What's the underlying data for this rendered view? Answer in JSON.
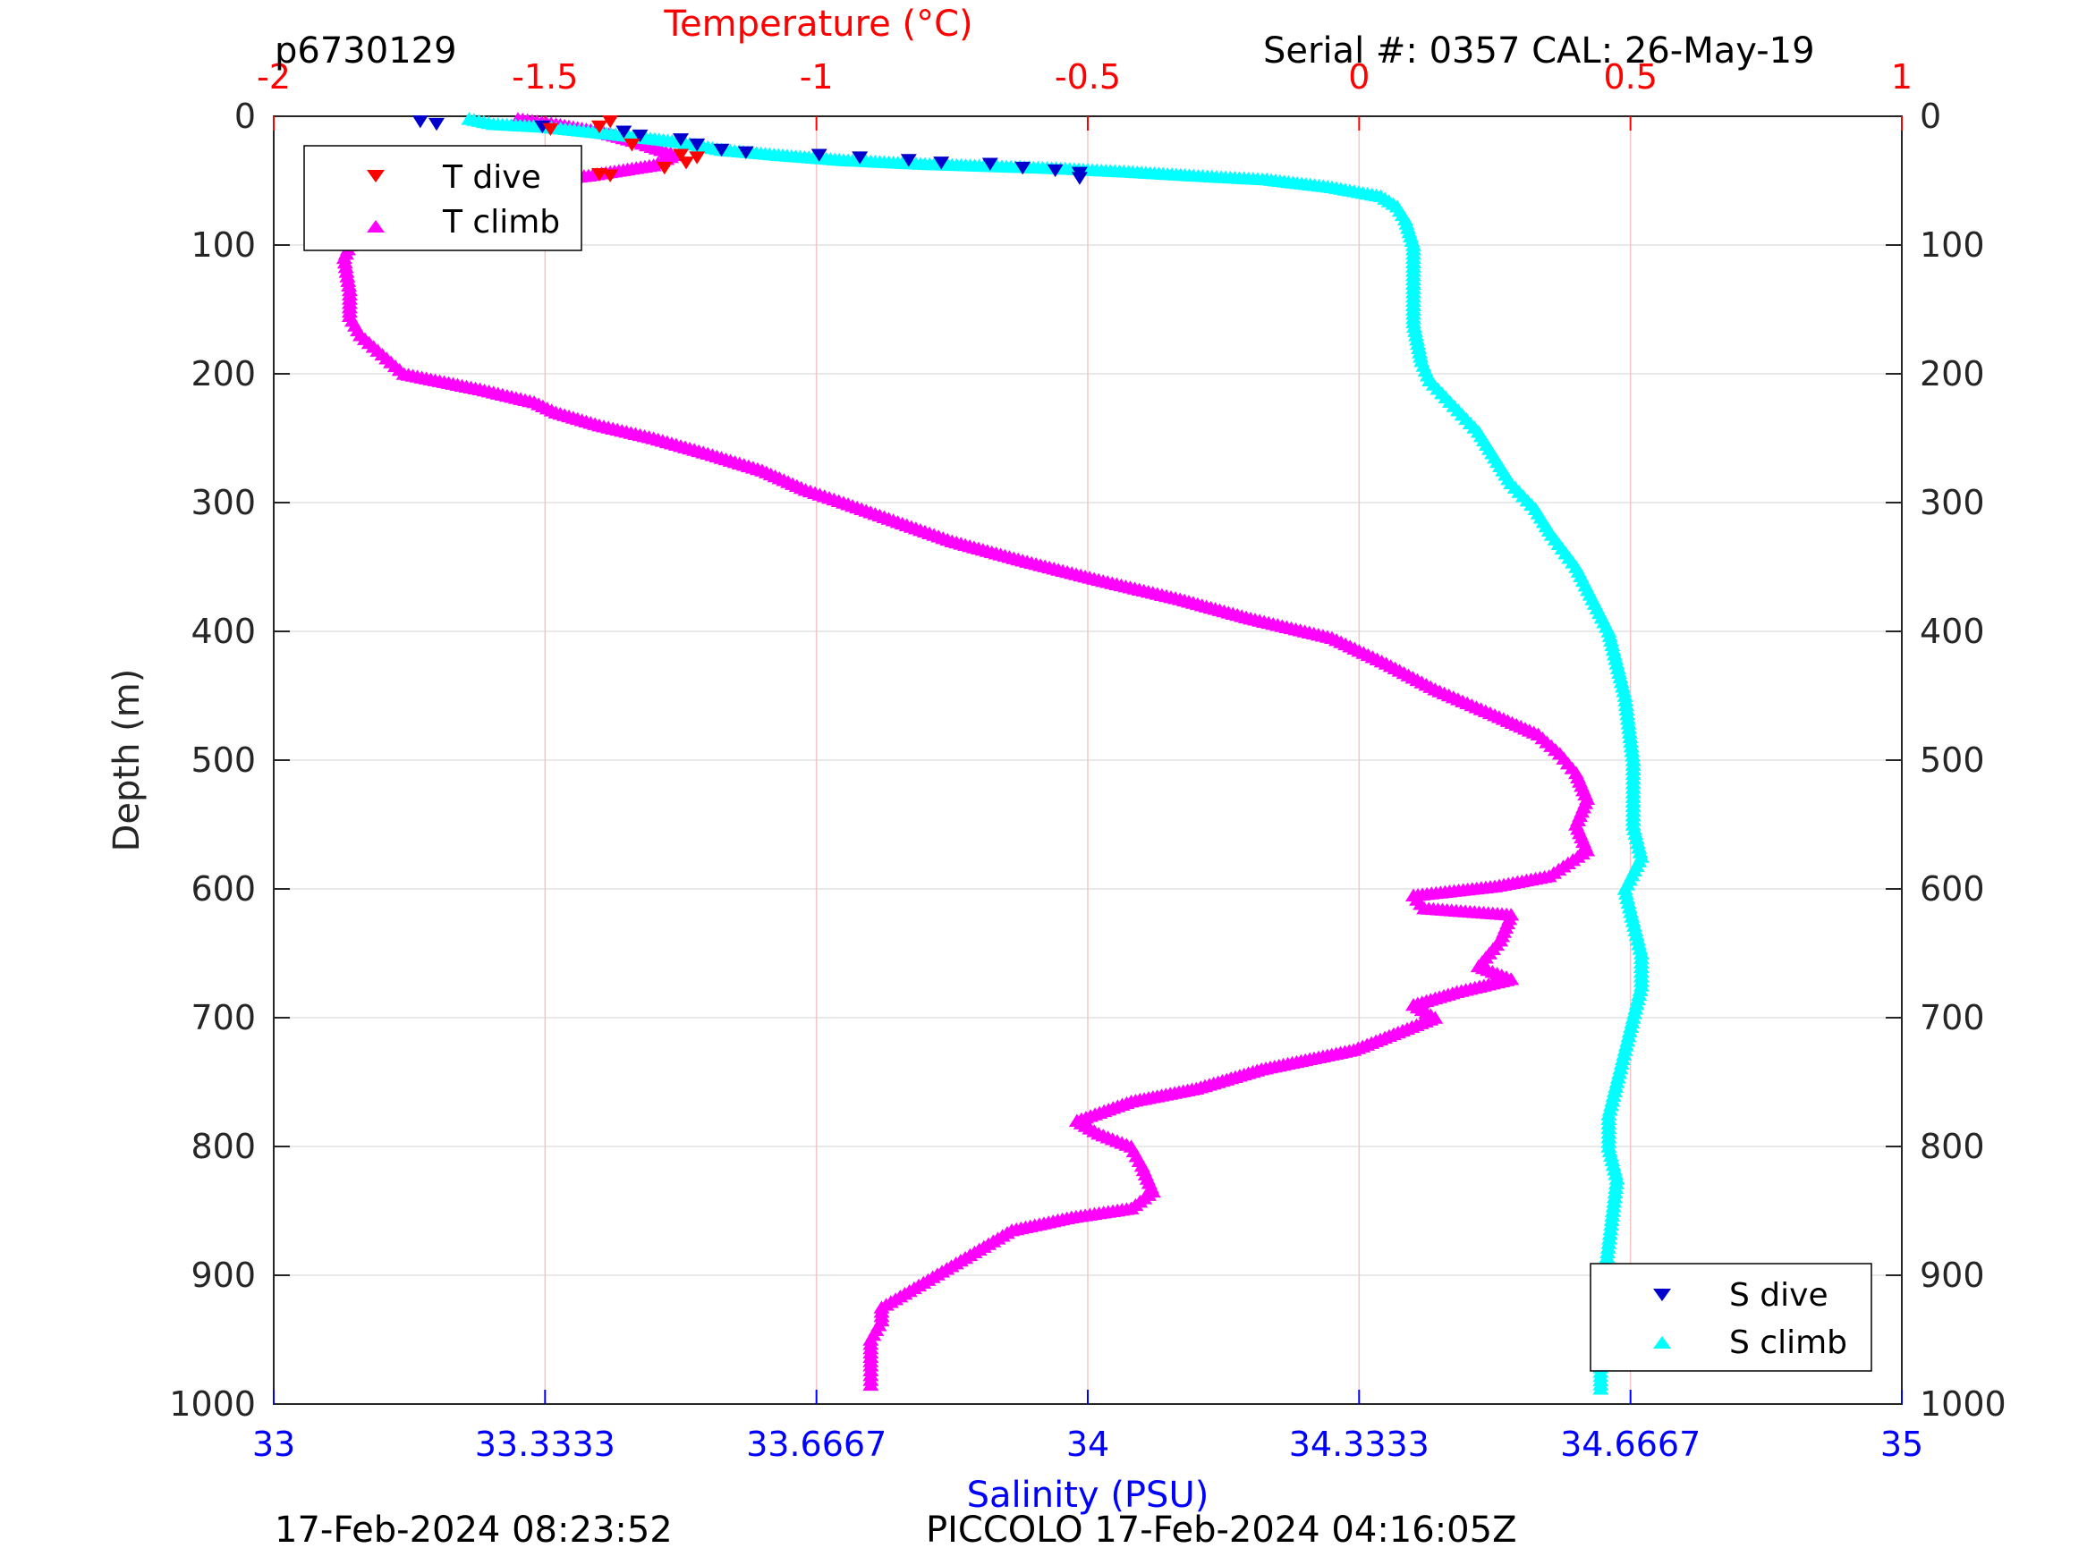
{
  "header": {
    "profile_id": "p6730129",
    "serial": "Serial #: 0357  CAL: 26-May-19"
  },
  "footer": {
    "left_timestamp": "17-Feb-2024 08:23:52",
    "right_label": "PICCOLO 17-Feb-2024 04:16:05Z"
  },
  "colors": {
    "temp_axis": "#ff0000",
    "sal_axis": "#0000ff",
    "t_dive": "#ff0000",
    "t_climb": "#ff00ff",
    "s_dive": "#0000cc",
    "s_climb": "#00ffff"
  },
  "chart_data": {
    "type": "scatter",
    "ylabel": "Depth (m)",
    "top_xlabel": "Temperature (°C)",
    "bottom_xlabel": "Salinity (PSU)",
    "ylim": [
      0,
      1000
    ],
    "y_reversed": true,
    "temp_xlim": [
      -2,
      1
    ],
    "sal_xlim": [
      33,
      35
    ],
    "y_ticks": [
      "0",
      "100",
      "200",
      "300",
      "400",
      "500",
      "600",
      "700",
      "800",
      "900",
      "1000"
    ],
    "temp_ticks": [
      "-2",
      "-1.5",
      "-1",
      "-0.5",
      "0",
      "0.5",
      "1"
    ],
    "sal_ticks": [
      "33",
      "33.3333",
      "33.6667",
      "34",
      "34.3333",
      "34.6667",
      "35"
    ],
    "grid": true,
    "legend_temperature": {
      "placement": "top-left",
      "entries": [
        "T dive",
        "T climb"
      ]
    },
    "legend_salinity": {
      "placement": "bottom-right",
      "entries": [
        "S dive",
        "S climb"
      ]
    },
    "series": [
      {
        "name": "T dive",
        "axis": "temperature",
        "marker": "triangle-down",
        "points": [
          [
            -1.38,
            4
          ],
          [
            -1.4,
            8
          ],
          [
            -1.49,
            10
          ],
          [
            -1.34,
            22
          ],
          [
            -1.25,
            30
          ],
          [
            -1.22,
            32
          ],
          [
            -1.24,
            36
          ],
          [
            -1.28,
            40
          ],
          [
            -1.38,
            46
          ],
          [
            -1.4,
            45
          ]
        ]
      },
      {
        "name": "T climb",
        "axis": "temperature",
        "marker": "triangle-up",
        "points": [
          [
            -1.55,
            2
          ],
          [
            -1.48,
            6
          ],
          [
            -1.4,
            12
          ],
          [
            -1.33,
            20
          ],
          [
            -1.26,
            30
          ],
          [
            -1.3,
            38
          ],
          [
            -1.42,
            46
          ],
          [
            -1.55,
            52
          ],
          [
            -1.72,
            62
          ],
          [
            -1.82,
            75
          ],
          [
            -1.85,
            90
          ],
          [
            -1.87,
            110
          ],
          [
            -1.86,
            135
          ],
          [
            -1.86,
            155
          ],
          [
            -1.84,
            170
          ],
          [
            -1.8,
            185
          ],
          [
            -1.76,
            200
          ],
          [
            -1.62,
            212
          ],
          [
            -1.52,
            222
          ],
          [
            -1.48,
            230
          ],
          [
            -1.4,
            240
          ],
          [
            -1.3,
            250
          ],
          [
            -1.2,
            262
          ],
          [
            -1.1,
            275
          ],
          [
            -1.02,
            290
          ],
          [
            -0.95,
            300
          ],
          [
            -0.85,
            315
          ],
          [
            -0.75,
            330
          ],
          [
            -0.62,
            345
          ],
          [
            -0.48,
            360
          ],
          [
            -0.33,
            375
          ],
          [
            -0.2,
            390
          ],
          [
            -0.05,
            405
          ],
          [
            0.05,
            425
          ],
          [
            0.14,
            445
          ],
          [
            0.25,
            465
          ],
          [
            0.33,
            480
          ],
          [
            0.37,
            495
          ],
          [
            0.4,
            510
          ],
          [
            0.42,
            530
          ],
          [
            0.4,
            550
          ],
          [
            0.42,
            570
          ],
          [
            0.35,
            590
          ],
          [
            0.25,
            598
          ],
          [
            0.1,
            605
          ],
          [
            0.12,
            615
          ],
          [
            0.28,
            620
          ],
          [
            0.26,
            640
          ],
          [
            0.22,
            660
          ],
          [
            0.28,
            670
          ],
          [
            0.18,
            680
          ],
          [
            0.1,
            690
          ],
          [
            0.14,
            700
          ],
          [
            0.08,
            710
          ],
          [
            -0.01,
            725
          ],
          [
            -0.18,
            740
          ],
          [
            -0.3,
            755
          ],
          [
            -0.42,
            765
          ],
          [
            -0.52,
            780
          ],
          [
            -0.48,
            790
          ],
          [
            -0.42,
            800
          ],
          [
            -0.4,
            815
          ],
          [
            -0.38,
            835
          ],
          [
            -0.42,
            848
          ],
          [
            -0.53,
            855
          ],
          [
            -0.64,
            865
          ],
          [
            -0.7,
            880
          ],
          [
            -0.76,
            895
          ],
          [
            -0.82,
            910
          ],
          [
            -0.88,
            925
          ],
          [
            -0.88,
            935
          ],
          [
            -0.9,
            950
          ],
          [
            -0.9,
            970
          ],
          [
            -0.9,
            985
          ]
        ]
      },
      {
        "name": "S dive",
        "axis": "salinity",
        "marker": "triangle-down",
        "points": [
          [
            33.18,
            4
          ],
          [
            33.2,
            6
          ],
          [
            33.33,
            8
          ],
          [
            33.43,
            12
          ],
          [
            33.45,
            15
          ],
          [
            33.5,
            18
          ],
          [
            33.52,
            22
          ],
          [
            33.55,
            26
          ],
          [
            33.58,
            28
          ],
          [
            33.67,
            30
          ],
          [
            33.72,
            32
          ],
          [
            33.78,
            34
          ],
          [
            33.82,
            36
          ],
          [
            33.88,
            37
          ],
          [
            33.92,
            40
          ],
          [
            33.96,
            42
          ],
          [
            33.99,
            44
          ],
          [
            33.99,
            48
          ]
        ]
      },
      {
        "name": "S climb",
        "axis": "salinity",
        "marker": "triangle-up",
        "points": [
          [
            33.24,
            2
          ],
          [
            33.27,
            6
          ],
          [
            33.33,
            8
          ],
          [
            33.42,
            14
          ],
          [
            33.5,
            20
          ],
          [
            33.55,
            26
          ],
          [
            33.62,
            30
          ],
          [
            33.7,
            34
          ],
          [
            33.8,
            37
          ],
          [
            33.95,
            40
          ],
          [
            34.05,
            43
          ],
          [
            34.13,
            46
          ],
          [
            34.22,
            49
          ],
          [
            34.3,
            55
          ],
          [
            34.36,
            62
          ],
          [
            34.38,
            70
          ],
          [
            34.39,
            80
          ],
          [
            34.4,
            100
          ],
          [
            34.4,
            130
          ],
          [
            34.4,
            160
          ],
          [
            34.41,
            190
          ],
          [
            34.42,
            205
          ],
          [
            34.45,
            225
          ],
          [
            34.48,
            245
          ],
          [
            34.5,
            265
          ],
          [
            34.52,
            285
          ],
          [
            34.55,
            305
          ],
          [
            34.57,
            325
          ],
          [
            34.6,
            350
          ],
          [
            34.62,
            375
          ],
          [
            34.64,
            400
          ],
          [
            34.65,
            425
          ],
          [
            34.66,
            450
          ],
          [
            34.665,
            475
          ],
          [
            34.67,
            500
          ],
          [
            34.67,
            525
          ],
          [
            34.67,
            550
          ],
          [
            34.68,
            575
          ],
          [
            34.66,
            600
          ],
          [
            34.67,
            625
          ],
          [
            34.68,
            650
          ],
          [
            34.68,
            675
          ],
          [
            34.67,
            700
          ],
          [
            34.66,
            725
          ],
          [
            34.65,
            750
          ],
          [
            34.64,
            775
          ],
          [
            34.64,
            800
          ],
          [
            34.65,
            825
          ],
          [
            34.645,
            850
          ],
          [
            34.64,
            875
          ],
          [
            34.635,
            900
          ],
          [
            34.63,
            925
          ],
          [
            34.63,
            950
          ],
          [
            34.63,
            975
          ],
          [
            34.63,
            988
          ]
        ]
      }
    ]
  }
}
